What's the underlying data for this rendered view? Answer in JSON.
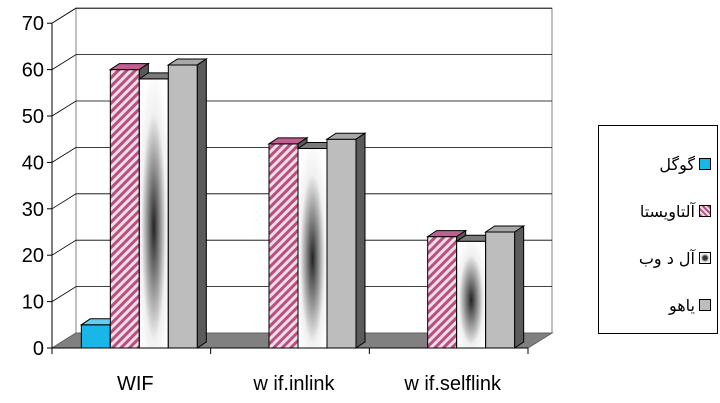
{
  "chart_data": {
    "type": "bar",
    "categories": [
      "WIF",
      "w if.inlink",
      "w if.selflink"
    ],
    "series": [
      {
        "name": "گوگل",
        "values": [
          5,
          0,
          0
        ],
        "color": "#19b6e8"
      },
      {
        "name": "آلتاویستا",
        "values": [
          60,
          44,
          24
        ],
        "color": "#c06090"
      },
      {
        "name": "آل د وب",
        "values": [
          58,
          43,
          23
        ],
        "color": "#d8d8d8"
      },
      {
        "name": "یاهو",
        "values": [
          61,
          45,
          25
        ],
        "color": "#bdbdbd"
      }
    ],
    "ylim": [
      0,
      70
    ],
    "yticks": [
      "0",
      "10",
      "20",
      "30",
      "40",
      "50",
      "60",
      "70"
    ],
    "grid": true,
    "legend_position": "right",
    "three_d": true
  }
}
